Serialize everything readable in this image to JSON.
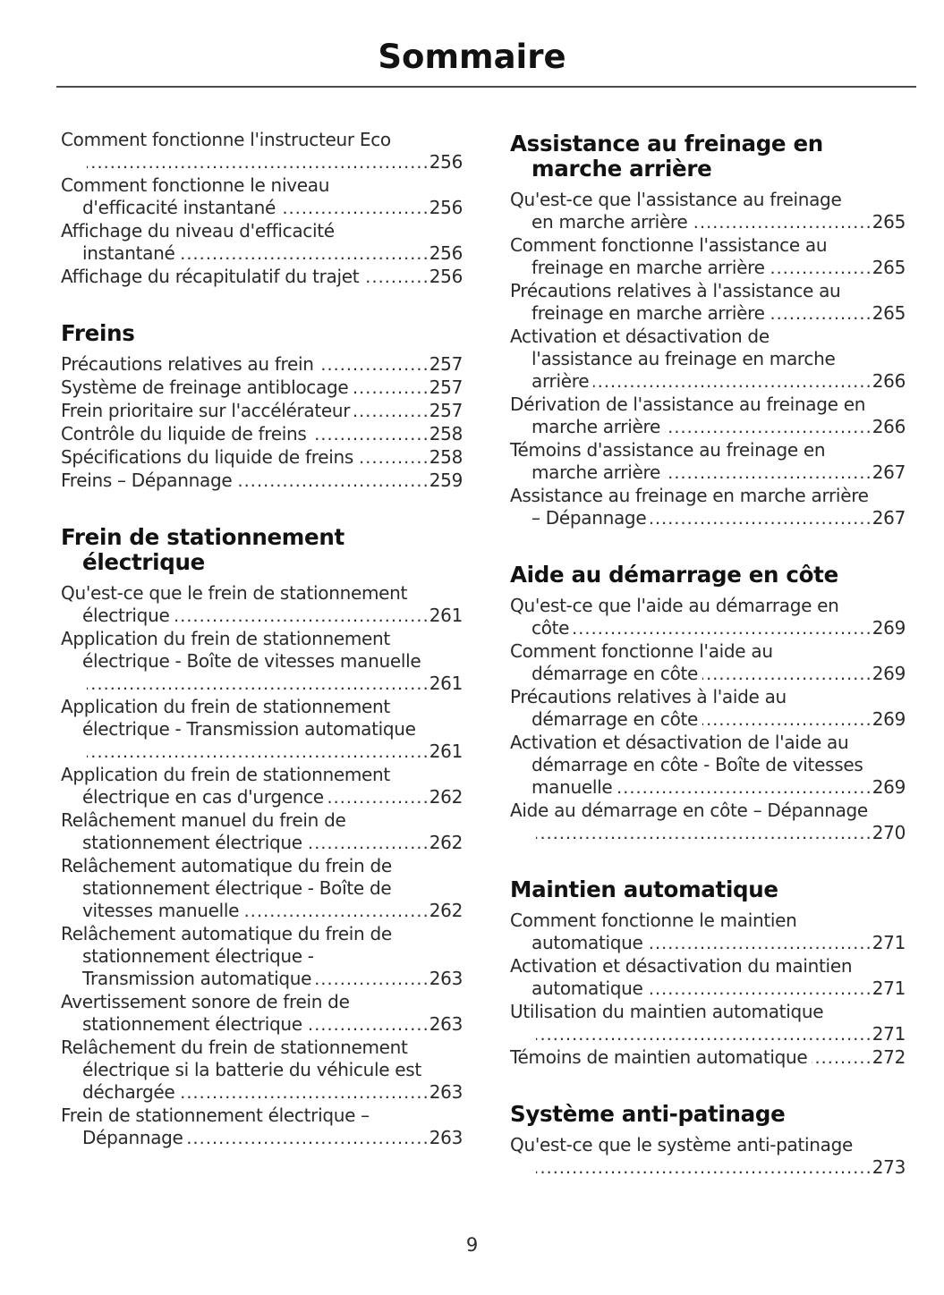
{
  "page": {
    "title": "Sommaire",
    "page_number": "9"
  },
  "columns": [
    {
      "blocks": [
        {
          "type": "entry",
          "lines": [
            "Comment fonctionne l'instructeur Eco",
            ""
          ],
          "page": "256"
        },
        {
          "type": "entry",
          "lines": [
            "Comment fonctionne le niveau",
            "d'efficacité instantané"
          ],
          "page": "256"
        },
        {
          "type": "entry",
          "lines": [
            "Affichage du niveau d'efficacité",
            "instantané"
          ],
          "page": "256"
        },
        {
          "type": "entry",
          "lines": [
            "Affichage du récapitulatif du trajet"
          ],
          "page": "256"
        },
        {
          "type": "heading",
          "lines": [
            "Freins"
          ]
        },
        {
          "type": "entry",
          "lines": [
            "Précautions relatives au frein"
          ],
          "page": "257"
        },
        {
          "type": "entry",
          "lines": [
            "Système de freinage antiblocage"
          ],
          "page": "257"
        },
        {
          "type": "entry",
          "lines": [
            "Frein prioritaire sur l'accélérateur"
          ],
          "page": "257"
        },
        {
          "type": "entry",
          "lines": [
            "Contrôle du liquide de freins"
          ],
          "page": "258"
        },
        {
          "type": "entry",
          "lines": [
            "Spécifications du liquide de freins"
          ],
          "page": "258"
        },
        {
          "type": "entry",
          "lines": [
            "Freins – Dépannage"
          ],
          "page": "259"
        },
        {
          "type": "heading",
          "lines": [
            "Frein de stationnement",
            "électrique"
          ]
        },
        {
          "type": "entry",
          "lines": [
            "Qu'est-ce que le frein de stationnement",
            "électrique"
          ],
          "page": "261"
        },
        {
          "type": "entry",
          "lines": [
            "Application du frein de stationnement",
            "électrique - Boîte de vitesses manuelle",
            ""
          ],
          "page": "261"
        },
        {
          "type": "entry",
          "lines": [
            "Application du frein de stationnement",
            "électrique - Transmission automatique",
            ""
          ],
          "page": "261"
        },
        {
          "type": "entry",
          "lines": [
            "Application du frein de stationnement",
            "électrique en cas d'urgence"
          ],
          "page": "262"
        },
        {
          "type": "entry",
          "lines": [
            "Relâchement manuel du frein de",
            "stationnement électrique"
          ],
          "page": "262"
        },
        {
          "type": "entry",
          "lines": [
            "Relâchement automatique du frein de",
            "stationnement électrique - Boîte de",
            "vitesses manuelle"
          ],
          "page": "262"
        },
        {
          "type": "entry",
          "lines": [
            "Relâchement automatique du frein de",
            "stationnement électrique -",
            "Transmission automatique"
          ],
          "page": "263"
        },
        {
          "type": "entry",
          "lines": [
            "Avertissement sonore de frein de",
            "stationnement électrique"
          ],
          "page": "263"
        },
        {
          "type": "entry",
          "lines": [
            "Relâchement du frein de stationnement",
            "électrique si la batterie du véhicule est",
            "déchargée"
          ],
          "page": "263"
        },
        {
          "type": "entry",
          "lines": [
            "Frein de stationnement électrique –",
            "Dépannage"
          ],
          "page": "263"
        }
      ]
    },
    {
      "blocks": [
        {
          "type": "heading",
          "lines": [
            "Assistance au freinage en",
            "marche arrière"
          ]
        },
        {
          "type": "entry",
          "lines": [
            "Qu'est-ce que l'assistance au freinage",
            "en marche arrière"
          ],
          "page": "265"
        },
        {
          "type": "entry",
          "lines": [
            "Comment fonctionne l'assistance au",
            "freinage en marche arrière"
          ],
          "page": "265"
        },
        {
          "type": "entry",
          "lines": [
            "Précautions relatives à l'assistance au",
            "freinage en marche arrière"
          ],
          "page": "265"
        },
        {
          "type": "entry",
          "lines": [
            "Activation et désactivation de",
            "l'assistance au freinage en marche",
            "arrière"
          ],
          "page": "266"
        },
        {
          "type": "entry",
          "lines": [
            "Dérivation de l'assistance au freinage en",
            "marche arrière"
          ],
          "page": "266"
        },
        {
          "type": "entry",
          "lines": [
            "Témoins d'assistance au freinage en",
            "marche arrière"
          ],
          "page": "267"
        },
        {
          "type": "entry",
          "lines": [
            "Assistance au freinage en marche arrière",
            "– Dépannage"
          ],
          "page": "267"
        },
        {
          "type": "heading",
          "lines": [
            "Aide au démarrage en côte"
          ]
        },
        {
          "type": "entry",
          "lines": [
            "Qu'est-ce que l'aide au démarrage en",
            "côte"
          ],
          "page": "269"
        },
        {
          "type": "entry",
          "lines": [
            "Comment fonctionne l'aide au",
            "démarrage en côte"
          ],
          "page": "269"
        },
        {
          "type": "entry",
          "lines": [
            "Précautions relatives à l'aide au",
            "démarrage en côte"
          ],
          "page": "269"
        },
        {
          "type": "entry",
          "lines": [
            "Activation et désactivation de l'aide au",
            "démarrage en côte - Boîte de vitesses",
            "manuelle"
          ],
          "page": "269"
        },
        {
          "type": "entry",
          "lines": [
            "Aide au démarrage en côte – Dépannage",
            ""
          ],
          "page": "270"
        },
        {
          "type": "heading",
          "lines": [
            "Maintien automatique"
          ]
        },
        {
          "type": "entry",
          "lines": [
            "Comment fonctionne le maintien",
            "automatique"
          ],
          "page": "271"
        },
        {
          "type": "entry",
          "lines": [
            "Activation et désactivation du maintien",
            "automatique"
          ],
          "page": "271"
        },
        {
          "type": "entry",
          "lines": [
            "Utilisation du maintien automatique",
            ""
          ],
          "page": "271"
        },
        {
          "type": "entry",
          "lines": [
            "Témoins de maintien automatique"
          ],
          "page": "272"
        },
        {
          "type": "heading",
          "lines": [
            "Système anti-patinage"
          ]
        },
        {
          "type": "entry",
          "lines": [
            "Qu'est-ce que le système anti-patinage",
            ""
          ],
          "page": "273"
        }
      ]
    }
  ]
}
